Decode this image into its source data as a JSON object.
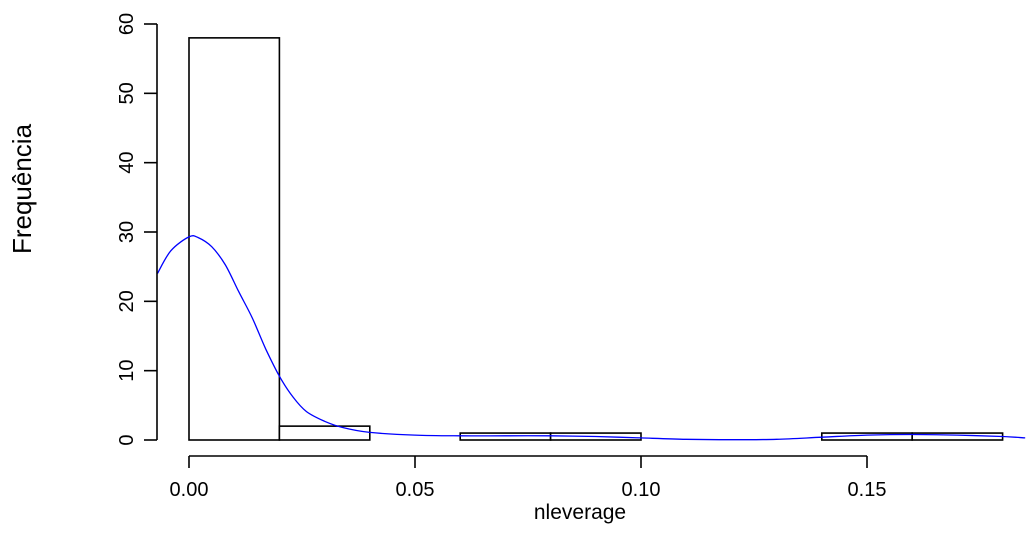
{
  "chart_data": {
    "type": "bar",
    "subtype": "histogram-with-density-curve",
    "title": "",
    "xlabel": "nleverage",
    "ylabel": "Frequência",
    "bins": [
      {
        "x0": 0.0,
        "x1": 0.02,
        "count": 58
      },
      {
        "x0": 0.02,
        "x1": 0.04,
        "count": 2
      },
      {
        "x0": 0.04,
        "x1": 0.06,
        "count": 0
      },
      {
        "x0": 0.06,
        "x1": 0.08,
        "count": 1
      },
      {
        "x0": 0.08,
        "x1": 0.1,
        "count": 1
      },
      {
        "x0": 0.1,
        "x1": 0.12,
        "count": 0
      },
      {
        "x0": 0.12,
        "x1": 0.14,
        "count": 0
      },
      {
        "x0": 0.14,
        "x1": 0.16,
        "count": 1
      },
      {
        "x0": 0.16,
        "x1": 0.18,
        "count": 1
      }
    ],
    "density_curve": {
      "color": "#0000ff",
      "points": [
        [
          -0.007,
          24.0
        ],
        [
          -0.004,
          27.3
        ],
        [
          0.0,
          29.3
        ],
        [
          0.002,
          29.2
        ],
        [
          0.005,
          27.9
        ],
        [
          0.008,
          25.3
        ],
        [
          0.011,
          21.4
        ],
        [
          0.014,
          17.6
        ],
        [
          0.017,
          13.1
        ],
        [
          0.02,
          9.2
        ],
        [
          0.023,
          6.2
        ],
        [
          0.026,
          4.1
        ],
        [
          0.03,
          2.7
        ],
        [
          0.034,
          1.8
        ],
        [
          0.04,
          1.1
        ],
        [
          0.05,
          0.7
        ],
        [
          0.06,
          0.6
        ],
        [
          0.07,
          0.6
        ],
        [
          0.08,
          0.6
        ],
        [
          0.09,
          0.5
        ],
        [
          0.1,
          0.3
        ],
        [
          0.11,
          0.1
        ],
        [
          0.12,
          0.05
        ],
        [
          0.13,
          0.1
        ],
        [
          0.14,
          0.4
        ],
        [
          0.15,
          0.7
        ],
        [
          0.16,
          0.8
        ],
        [
          0.17,
          0.7
        ],
        [
          0.18,
          0.5
        ],
        [
          0.185,
          0.3
        ]
      ]
    },
    "xlim": [
      -0.007,
      0.185
    ],
    "ylim": [
      0,
      60
    ],
    "x_ticks": [
      {
        "value": 0.0,
        "label": "0.00"
      },
      {
        "value": 0.05,
        "label": "0.05"
      },
      {
        "value": 0.1,
        "label": "0.10"
      },
      {
        "value": 0.15,
        "label": "0.15"
      }
    ],
    "y_ticks": [
      {
        "value": 0,
        "label": "0"
      },
      {
        "value": 10,
        "label": "10"
      },
      {
        "value": 20,
        "label": "20"
      },
      {
        "value": 30,
        "label": "30"
      },
      {
        "value": 40,
        "label": "40"
      },
      {
        "value": 50,
        "label": "50"
      },
      {
        "value": 60,
        "label": "60"
      }
    ],
    "grid": false,
    "legend": "none",
    "bar_fill": "#ffffff",
    "bar_stroke": "#000000"
  }
}
